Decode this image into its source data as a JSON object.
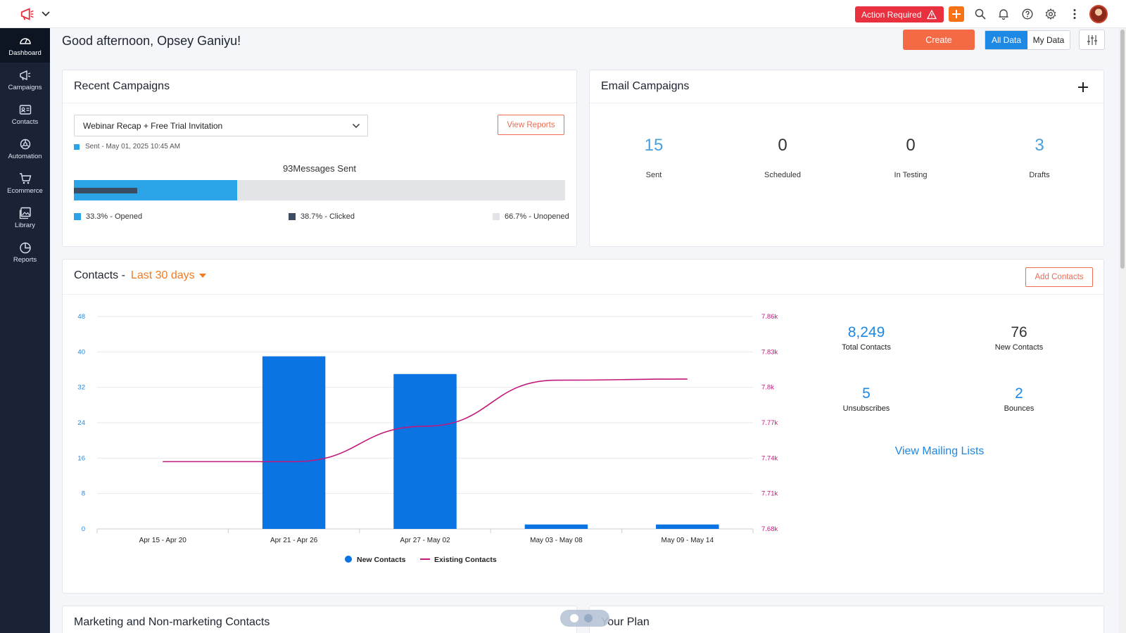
{
  "topbar": {
    "action_required": "Action Required"
  },
  "sidebar": {
    "items": [
      {
        "label": "Dashboard",
        "icon": "dashboard-icon"
      },
      {
        "label": "Campaigns",
        "icon": "megaphone-icon"
      },
      {
        "label": "Contacts",
        "icon": "contact-card-icon"
      },
      {
        "label": "Automation",
        "icon": "automation-icon"
      },
      {
        "label": "Ecommerce",
        "icon": "cart-icon"
      },
      {
        "label": "Library",
        "icon": "image-library-icon"
      },
      {
        "label": "Reports",
        "icon": "pie-chart-icon"
      }
    ]
  },
  "header": {
    "greeting": "Good afternoon, Opsey Ganiyu!",
    "create_label": "Create",
    "toggle": {
      "all": "All Data",
      "mine": "My Data"
    }
  },
  "recent_campaigns": {
    "title": "Recent Campaigns",
    "selected_campaign": "Webinar Recap + Free Trial Invitation",
    "view_reports_label": "View Reports",
    "sent_info": "Sent - May 01, 2025 10:45 AM",
    "messages_sent": "93Messages Sent",
    "opened_pct": 33.3,
    "clicked_pct": 12.9,
    "legend": {
      "opened": "33.3% - Opened",
      "clicked": "38.7% - Clicked",
      "unopened": "66.7% - Unopened"
    },
    "colors": {
      "opened": "#2aa4e6",
      "clicked": "#3a4d63",
      "unopened": "#e2e4e7"
    }
  },
  "email_campaigns": {
    "title": "Email Campaigns",
    "stats": [
      {
        "value": "15",
        "label": "Sent",
        "color": "#4a9fdb"
      },
      {
        "value": "0",
        "label": "Scheduled",
        "color": "#333333"
      },
      {
        "value": "0",
        "label": "In Testing",
        "color": "#333333"
      },
      {
        "value": "3",
        "label": "Drafts",
        "color": "#4a9fdb"
      }
    ]
  },
  "contacts": {
    "title": "Contacts -",
    "range_label": "Last 30 days",
    "add_contacts_label": "Add Contacts",
    "stats": [
      {
        "value": "8,249",
        "label": "Total Contacts",
        "color": "#1e88e5"
      },
      {
        "value": "76",
        "label": "New Contacts",
        "color": "#333333"
      },
      {
        "value": "5",
        "label": "Unsubscribes",
        "color": "#1e88e5"
      },
      {
        "value": "2",
        "label": "Bounces",
        "color": "#1e88e5"
      }
    ],
    "view_mailing_lists": "View Mailing Lists"
  },
  "chart_data": {
    "type": "bar",
    "categories": [
      "Apr 15 - Apr 20",
      "Apr 21 - Apr 26",
      "Apr 27 - May 02",
      "May 03 - May 08",
      "May 09 - May 14"
    ],
    "series": [
      {
        "name": "New Contacts",
        "type": "bar",
        "axis": "left",
        "color": "#0a74e3",
        "values": [
          0,
          39,
          35,
          1,
          1
        ]
      },
      {
        "name": "Existing Contacts",
        "type": "line",
        "axis": "right",
        "color": "#c2187b",
        "values": [
          7737,
          7737,
          7767,
          7806,
          7807
        ]
      }
    ],
    "y_left": {
      "ticks": [
        "0",
        "8",
        "16",
        "24",
        "32",
        "40",
        "48"
      ],
      "range": [
        0,
        48
      ],
      "color": "#1e88e5"
    },
    "y_right": {
      "ticks": [
        "7.68k",
        "7.71k",
        "7.74k",
        "7.77k",
        "7.8k",
        "7.83k",
        "7.86k"
      ],
      "range": [
        7680,
        7860
      ],
      "color": "#c2187b"
    },
    "grid": true,
    "legend_position": "bottom-center"
  },
  "bottom": {
    "marketing_title": "Marketing and Non-marketing Contacts",
    "plan_title": "Your Plan"
  }
}
